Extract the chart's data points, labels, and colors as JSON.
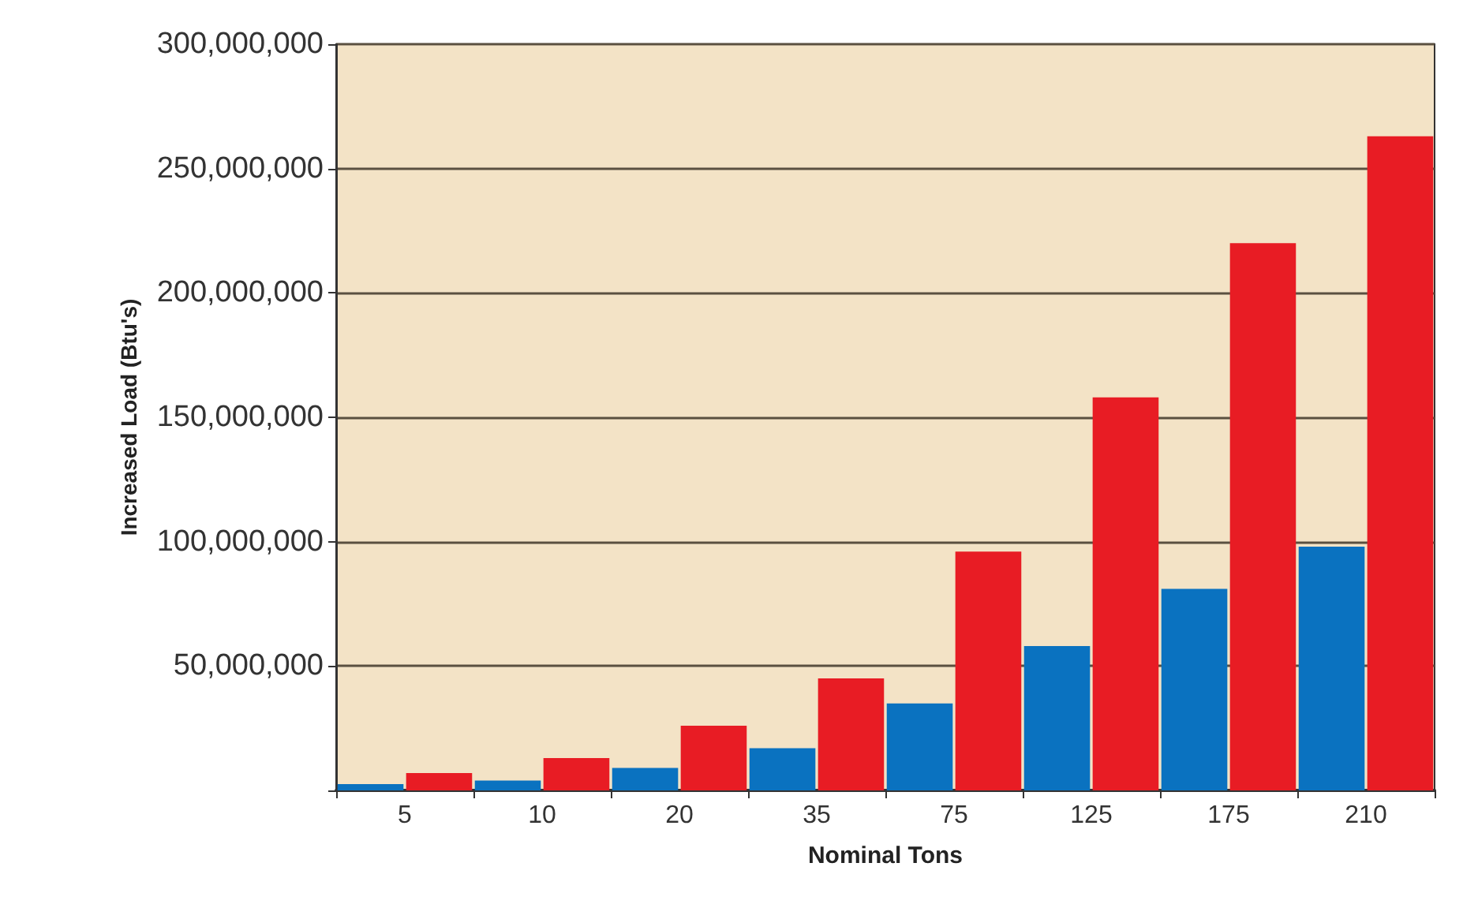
{
  "chart_data": {
    "type": "bar",
    "xlabel": "Nominal Tons",
    "ylabel": "Increased Load (Btu's)",
    "categories": [
      "5",
      "10",
      "20",
      "35",
      "75",
      "125",
      "175",
      "210"
    ],
    "series": [
      {
        "color": "#0a72c0",
        "values": [
          2500000,
          4000000,
          9000000,
          17000000,
          35000000,
          58000000,
          81000000,
          98000000
        ]
      },
      {
        "color": "#e81c24",
        "values": [
          7000000,
          13000000,
          26000000,
          45000000,
          96000000,
          158000000,
          220000000,
          263000000
        ]
      }
    ],
    "ylim": [
      0,
      300000000
    ],
    "yticks": [
      {
        "value": 0,
        "label": null
      },
      {
        "value": 50000000,
        "label": "50,000,000"
      },
      {
        "value": 100000000,
        "label": "100,000,000"
      },
      {
        "value": 150000000,
        "label": "150,000,000"
      },
      {
        "value": 200000000,
        "label": "200,000,000"
      },
      {
        "value": 250000000,
        "label": "250,000,000"
      },
      {
        "value": 300000000,
        "label": "300,000,000"
      }
    ],
    "grid": "y"
  }
}
